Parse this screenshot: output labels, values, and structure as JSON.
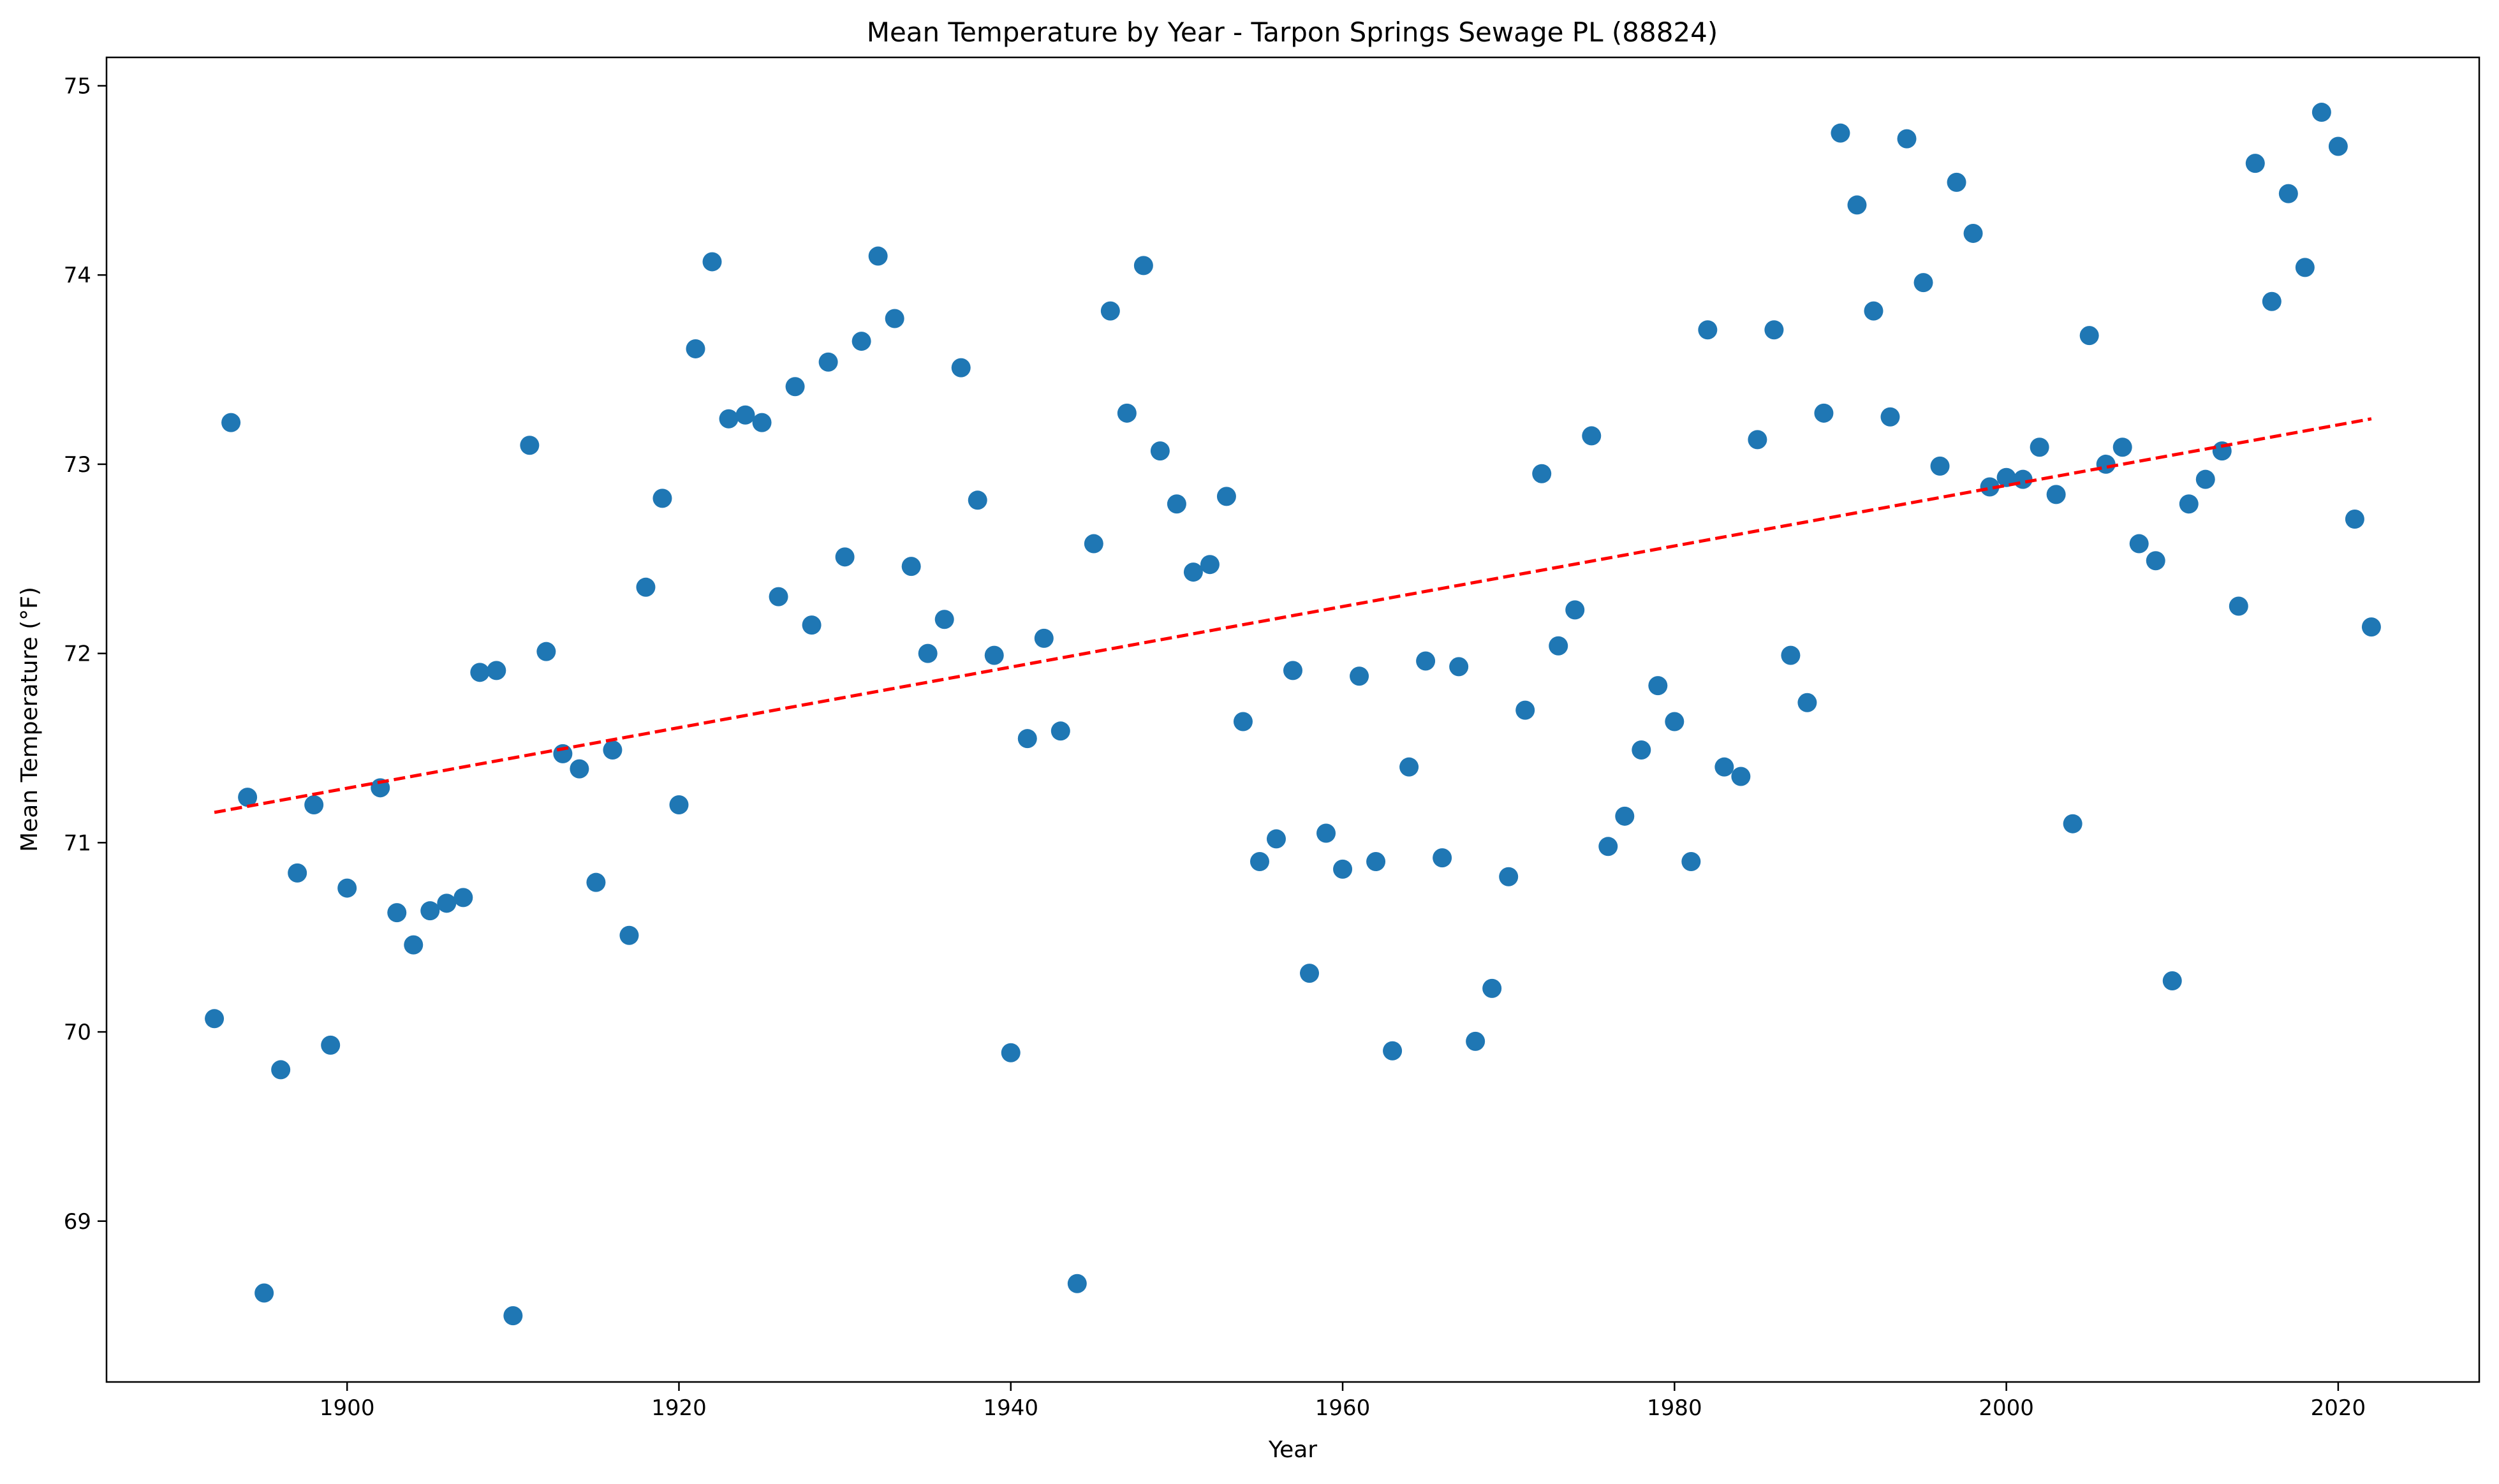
{
  "chart_data": {
    "type": "scatter",
    "title": "Mean Temperature by Year - Tarpon Springs Sewage PL (88824)",
    "xlabel": "Year",
    "ylabel": "Mean Temperature (°F)",
    "xlim": [
      1885.5,
      2028.5
    ],
    "ylim": [
      68.15,
      75.15
    ],
    "xticks": [
      1900,
      1920,
      1940,
      1960,
      1980,
      2000,
      2020
    ],
    "yticks": [
      69,
      70,
      71,
      72,
      73,
      74,
      75
    ],
    "grid": false,
    "point_color": "#1f77b4",
    "trend_color": "#ff0000",
    "series": [
      {
        "name": "Mean Temperature",
        "points": [
          [
            1892,
            70.07
          ],
          [
            1893,
            73.22
          ],
          [
            1894,
            71.24
          ],
          [
            1895,
            68.62
          ],
          [
            1896,
            69.8
          ],
          [
            1897,
            70.84
          ],
          [
            1898,
            71.2
          ],
          [
            1899,
            69.93
          ],
          [
            1900,
            70.76
          ],
          [
            1902,
            71.29
          ],
          [
            1903,
            70.63
          ],
          [
            1904,
            70.46
          ],
          [
            1905,
            70.64
          ],
          [
            1906,
            70.68
          ],
          [
            1907,
            70.71
          ],
          [
            1908,
            71.9
          ],
          [
            1909,
            71.91
          ],
          [
            1910,
            68.5
          ],
          [
            1911,
            73.1
          ],
          [
            1912,
            72.01
          ],
          [
            1913,
            71.47
          ],
          [
            1914,
            71.39
          ],
          [
            1915,
            70.79
          ],
          [
            1916,
            71.49
          ],
          [
            1917,
            70.51
          ],
          [
            1918,
            72.35
          ],
          [
            1919,
            72.82
          ],
          [
            1920,
            71.2
          ],
          [
            1921,
            73.61
          ],
          [
            1922,
            74.07
          ],
          [
            1923,
            73.24
          ],
          [
            1924,
            73.26
          ],
          [
            1925,
            73.22
          ],
          [
            1926,
            72.3
          ],
          [
            1927,
            73.41
          ],
          [
            1928,
            72.15
          ],
          [
            1929,
            73.54
          ],
          [
            1930,
            72.51
          ],
          [
            1931,
            73.65
          ],
          [
            1932,
            74.1
          ],
          [
            1933,
            73.77
          ],
          [
            1934,
            72.46
          ],
          [
            1935,
            72.0
          ],
          [
            1936,
            72.18
          ],
          [
            1937,
            73.51
          ],
          [
            1938,
            72.81
          ],
          [
            1939,
            71.99
          ],
          [
            1940,
            69.89
          ],
          [
            1941,
            71.55
          ],
          [
            1942,
            72.08
          ],
          [
            1943,
            71.59
          ],
          [
            1944,
            68.67
          ],
          [
            1945,
            72.58
          ],
          [
            1946,
            73.81
          ],
          [
            1947,
            73.27
          ],
          [
            1948,
            74.05
          ],
          [
            1949,
            73.07
          ],
          [
            1950,
            72.79
          ],
          [
            1951,
            72.43
          ],
          [
            1952,
            72.47
          ],
          [
            1953,
            72.83
          ],
          [
            1954,
            71.64
          ],
          [
            1955,
            70.9
          ],
          [
            1956,
            71.02
          ],
          [
            1957,
            71.91
          ],
          [
            1958,
            70.31
          ],
          [
            1959,
            71.05
          ],
          [
            1960,
            70.86
          ],
          [
            1961,
            71.88
          ],
          [
            1962,
            70.9
          ],
          [
            1963,
            69.9
          ],
          [
            1964,
            71.4
          ],
          [
            1965,
            71.96
          ],
          [
            1966,
            70.92
          ],
          [
            1967,
            71.93
          ],
          [
            1968,
            69.95
          ],
          [
            1969,
            70.23
          ],
          [
            1970,
            70.82
          ],
          [
            1971,
            71.7
          ],
          [
            1972,
            72.95
          ],
          [
            1973,
            72.04
          ],
          [
            1974,
            72.23
          ],
          [
            1975,
            73.15
          ],
          [
            1976,
            70.98
          ],
          [
            1977,
            71.14
          ],
          [
            1978,
            71.49
          ],
          [
            1979,
            71.83
          ],
          [
            1980,
            71.64
          ],
          [
            1981,
            70.9
          ],
          [
            1982,
            73.71
          ],
          [
            1983,
            71.4
          ],
          [
            1984,
            71.35
          ],
          [
            1985,
            73.13
          ],
          [
            1986,
            73.71
          ],
          [
            1987,
            71.99
          ],
          [
            1988,
            71.74
          ],
          [
            1989,
            73.27
          ],
          [
            1990,
            74.75
          ],
          [
            1991,
            74.37
          ],
          [
            1992,
            73.81
          ],
          [
            1993,
            73.25
          ],
          [
            1994,
            74.72
          ],
          [
            1995,
            73.96
          ],
          [
            1996,
            72.99
          ],
          [
            1997,
            74.49
          ],
          [
            1998,
            74.22
          ],
          [
            1999,
            72.88
          ],
          [
            2000,
            72.93
          ],
          [
            2001,
            72.92
          ],
          [
            2002,
            73.09
          ],
          [
            2003,
            72.84
          ],
          [
            2004,
            71.1
          ],
          [
            2005,
            73.68
          ],
          [
            2006,
            73.0
          ],
          [
            2007,
            73.09
          ],
          [
            2008,
            72.58
          ],
          [
            2009,
            72.49
          ],
          [
            2010,
            70.27
          ],
          [
            2011,
            72.79
          ],
          [
            2012,
            72.92
          ],
          [
            2013,
            73.07
          ],
          [
            2014,
            72.25
          ],
          [
            2015,
            74.59
          ],
          [
            2016,
            73.86
          ],
          [
            2017,
            74.43
          ],
          [
            2018,
            74.04
          ],
          [
            2019,
            74.86
          ],
          [
            2020,
            74.68
          ],
          [
            2021,
            72.71
          ],
          [
            2022,
            72.14
          ]
        ]
      }
    ],
    "trend_line": {
      "style": "dashed",
      "x": [
        1892,
        2022
      ],
      "y": [
        71.16,
        73.24
      ]
    }
  }
}
